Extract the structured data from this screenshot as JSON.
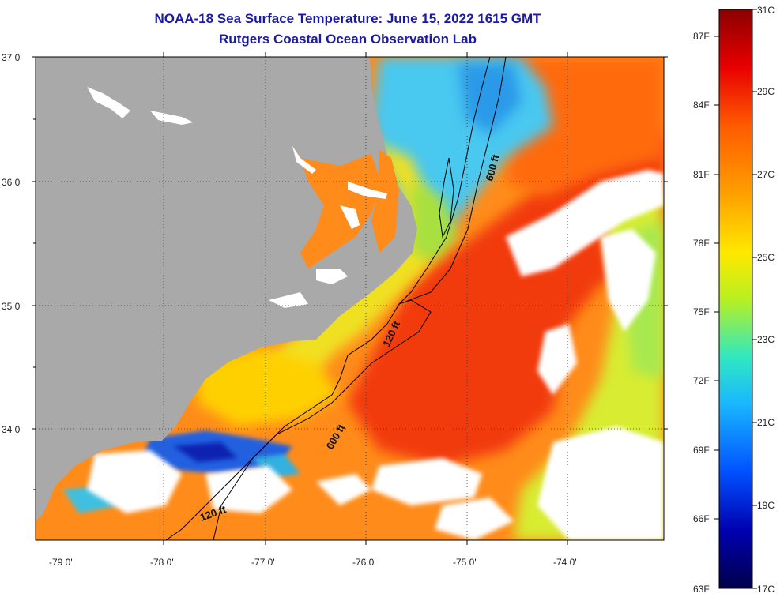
{
  "title": "NOAA-18 Sea Surface Temperature:  June 15, 2022 1615 GMT",
  "subtitle": "Rutgers Coastal Ocean Observation Lab",
  "lat_labels": [
    "37 0'",
    "36 0'",
    "35 0'",
    "34 0'"
  ],
  "lon_labels": [
    "-79 0'",
    "-78 0'",
    "-77 0'",
    "-76 0'",
    "-75 0'",
    "-74 0'"
  ],
  "contour_labels": [
    "600 ft",
    "120 ft",
    "600 ft",
    "120 ft"
  ],
  "colorbar": {
    "fahrenheit": [
      "87F",
      "84F",
      "81F",
      "78F",
      "75F",
      "72F",
      "69F",
      "66F",
      "63F"
    ],
    "celsius": [
      "31C",
      "29C",
      "27C",
      "25C",
      "23C",
      "21C",
      "19C",
      "17C"
    ],
    "gradient_colors": [
      "#8b0000",
      "#e80000",
      "#ff5a00",
      "#ffa000",
      "#ffe800",
      "#b8f020",
      "#30e8c0",
      "#1ab8ff",
      "#0050ff",
      "#0000b0",
      "#00004a"
    ]
  },
  "palette": {
    "land": "#a9a9a9",
    "cloud": "#ffffff",
    "title_color": "#1a1aa6"
  }
}
